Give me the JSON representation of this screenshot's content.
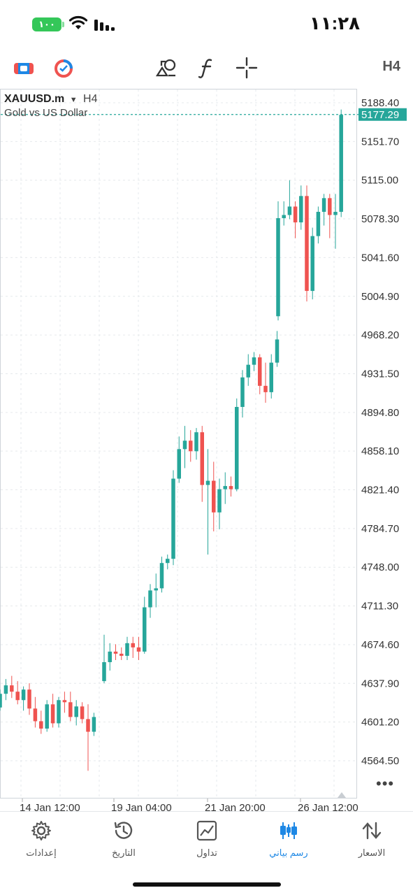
{
  "status_bar": {
    "time": "١١:٢٨",
    "battery": "١٠٠"
  },
  "toolbar": {
    "icons": [
      "chart-type-icon",
      "indicators-icon",
      "objects-icon",
      "function-icon",
      "crosshair-icon"
    ],
    "timeframe": "H4"
  },
  "chart": {
    "symbol": "XAUUSD.m",
    "timeframe": "H4",
    "description": "Gold vs US Dollar",
    "current_price": "5177.29",
    "colors": {
      "bull": "#26a69a",
      "bear": "#ef5350",
      "grid": "#e6e9ec",
      "price_line": "#26a69a"
    }
  },
  "chart_data": {
    "type": "candlestick",
    "symbol": "XAUUSD.m",
    "ylim": [
      4545,
      5200
    ],
    "y_ticks": [
      "5188.40",
      "5151.70",
      "5115.00",
      "5078.30",
      "5041.60",
      "5004.90",
      "4968.20",
      "4931.50",
      "4894.80",
      "4858.10",
      "4821.40",
      "4784.70",
      "4748.00",
      "4711.30",
      "4674.60",
      "4637.90",
      "4601.20",
      "4564.50"
    ],
    "x_ticks": [
      "14 Jan 12:00",
      "19 Jan 04:00",
      "21 Jan 20:00",
      "26 Jan 12:00"
    ],
    "current_price": 5177.29,
    "ohlc": [
      [
        4615,
        4632,
        4612,
        4628
      ],
      [
        4628,
        4642,
        4622,
        4636
      ],
      [
        4636,
        4645,
        4624,
        4630
      ],
      [
        4630,
        4640,
        4618,
        4622
      ],
      [
        4622,
        4635,
        4612,
        4632
      ],
      [
        4632,
        4638,
        4608,
        4614
      ],
      [
        4614,
        4625,
        4596,
        4602
      ],
      [
        4602,
        4612,
        4590,
        4595
      ],
      [
        4595,
        4622,
        4592,
        4618
      ],
      [
        4618,
        4628,
        4596,
        4600
      ],
      [
        4600,
        4625,
        4596,
        4622
      ],
      [
        4622,
        4630,
        4610,
        4620
      ],
      [
        4620,
        4630,
        4602,
        4606
      ],
      [
        4606,
        4622,
        4598,
        4616
      ],
      [
        4616,
        4620,
        4600,
        4604
      ],
      [
        4604,
        4618,
        4555,
        4592
      ],
      [
        4592,
        4610,
        4588,
        4606
      ],
      [
        4640,
        4684,
        4638,
        4658
      ],
      [
        4658,
        4676,
        4650,
        4668
      ],
      [
        4668,
        4675,
        4660,
        4666
      ],
      [
        4666,
        4672,
        4660,
        4664
      ],
      [
        4664,
        4682,
        4660,
        4676
      ],
      [
        4676,
        4682,
        4662,
        4672
      ],
      [
        4672,
        4682,
        4660,
        4668
      ],
      [
        4668,
        4720,
        4666,
        4710
      ],
      [
        4710,
        4732,
        4700,
        4726
      ],
      [
        4726,
        4742,
        4710,
        4728
      ],
      [
        4728,
        4758,
        4724,
        4752
      ],
      [
        4752,
        4760,
        4746,
        4756
      ],
      [
        4756,
        4840,
        4750,
        4832
      ],
      [
        4832,
        4872,
        4828,
        4860
      ],
      [
        4860,
        4882,
        4842,
        4868
      ],
      [
        4868,
        4878,
        4848,
        4858
      ],
      [
        4858,
        4880,
        4850,
        4876
      ],
      [
        4876,
        4882,
        4810,
        4826
      ],
      [
        4826,
        4860,
        4760,
        4830
      ],
      [
        4830,
        4848,
        4782,
        4800
      ],
      [
        4800,
        4832,
        4784,
        4822
      ],
      [
        4822,
        4838,
        4808,
        4825
      ],
      [
        4825,
        4834,
        4815,
        4822
      ],
      [
        4822,
        4908,
        4820,
        4900
      ],
      [
        4900,
        4935,
        4890,
        4928
      ],
      [
        4928,
        4950,
        4920,
        4940
      ],
      [
        4940,
        4952,
        4934,
        4947
      ],
      [
        4947,
        4950,
        4912,
        4920
      ],
      [
        4920,
        4942,
        4904,
        4914
      ],
      [
        4914,
        4950,
        4908,
        4942
      ],
      [
        4942,
        4972,
        4938,
        4964
      ],
      [
        4986,
        5095,
        4982,
        5079
      ],
      [
        5079,
        5095,
        5072,
        5082
      ],
      [
        5082,
        5115,
        5078,
        5090
      ],
      [
        5090,
        5095,
        5060,
        5075
      ],
      [
        5075,
        5110,
        5068,
        5100
      ],
      [
        5100,
        5110,
        5000,
        5010
      ],
      [
        5010,
        5070,
        5002,
        5062
      ],
      [
        5062,
        5090,
        5055,
        5085
      ],
      [
        5085,
        5102,
        5072,
        5098
      ],
      [
        5098,
        5102,
        5060,
        5082
      ],
      [
        5082,
        5102,
        5050,
        5085
      ],
      [
        5085,
        5182,
        5080,
        5177
      ]
    ]
  },
  "bottom_nav": {
    "items": [
      {
        "label": "الاسعار",
        "icon": "quotes-icon",
        "active": false
      },
      {
        "label": "رسم بياني",
        "icon": "chart-candles-icon",
        "active": true
      },
      {
        "label": "تداول",
        "icon": "trade-icon",
        "active": false
      },
      {
        "label": "التاريخ",
        "icon": "history-icon",
        "active": false
      },
      {
        "label": "إعدادات",
        "icon": "settings-icon",
        "active": false
      }
    ]
  }
}
